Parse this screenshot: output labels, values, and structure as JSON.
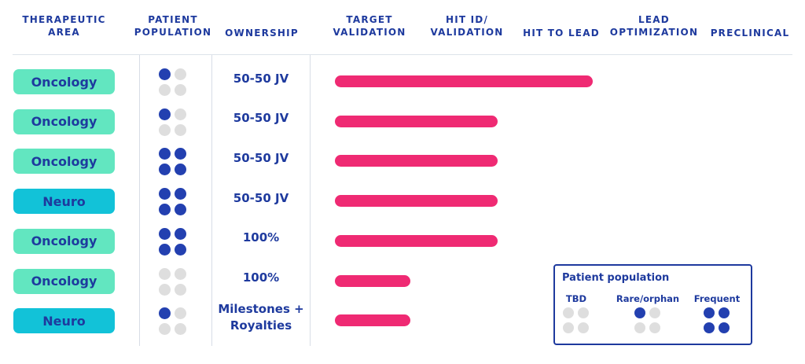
{
  "headers": {
    "therapeutic_area": [
      "THERAPEUTIC",
      "AREA"
    ],
    "patient_population": [
      "PATIENT",
      "POPULATION"
    ],
    "ownership": "OWNERSHIP",
    "target_validation": [
      "TARGET",
      "VALIDATION"
    ],
    "hit_id_validation": [
      "HIT ID/",
      "VALIDATION"
    ],
    "hit_to_lead": "HIT TO LEAD",
    "lead_optimization": [
      "LEAD",
      "OPTIMIZATION"
    ],
    "preclinical": "PRECLINICAL"
  },
  "colors": {
    "oncology": "#62e6c0",
    "neuro": "#12c2d8",
    "bar": "#ef2a73",
    "dot_on": "#2340b0",
    "dot_off": "#dedede",
    "text": "#1e3a9e"
  },
  "chart_data": {
    "type": "bar",
    "orientation": "horizontal",
    "stages": [
      "TARGET VALIDATION",
      "HIT ID/ VALIDATION",
      "HIT TO LEAD",
      "LEAD OPTIMIZATION",
      "PRECLINICAL"
    ],
    "programs": [
      {
        "area": "Oncology",
        "population": "Rare/orphan",
        "ownership": [
          "50-50 JV"
        ],
        "progress": 3
      },
      {
        "area": "Oncology",
        "population": "Rare/orphan",
        "ownership": [
          "50-50 JV"
        ],
        "progress": 2
      },
      {
        "area": "Oncology",
        "population": "Frequent",
        "ownership": [
          "50-50 JV"
        ],
        "progress": 2
      },
      {
        "area": "Neuro",
        "population": "Frequent",
        "ownership": [
          "50-50 JV"
        ],
        "progress": 2
      },
      {
        "area": "Oncology",
        "population": "Frequent",
        "ownership": [
          "100%"
        ],
        "progress": 2
      },
      {
        "area": "Oncology",
        "population": "TBD",
        "ownership": [
          "100%"
        ],
        "progress": 1
      },
      {
        "area": "Neuro",
        "population": "Rare/orphan",
        "ownership": [
          "Milestones +",
          "Royalties"
        ],
        "progress": 1
      }
    ]
  },
  "legend": {
    "title": "Patient population",
    "items": [
      {
        "label": "TBD",
        "on": [
          0,
          0,
          0,
          0
        ]
      },
      {
        "label": "Rare/orphan",
        "on": [
          1,
          0,
          0,
          0
        ]
      },
      {
        "label": "Frequent",
        "on": [
          1,
          1,
          1,
          1
        ]
      }
    ]
  }
}
